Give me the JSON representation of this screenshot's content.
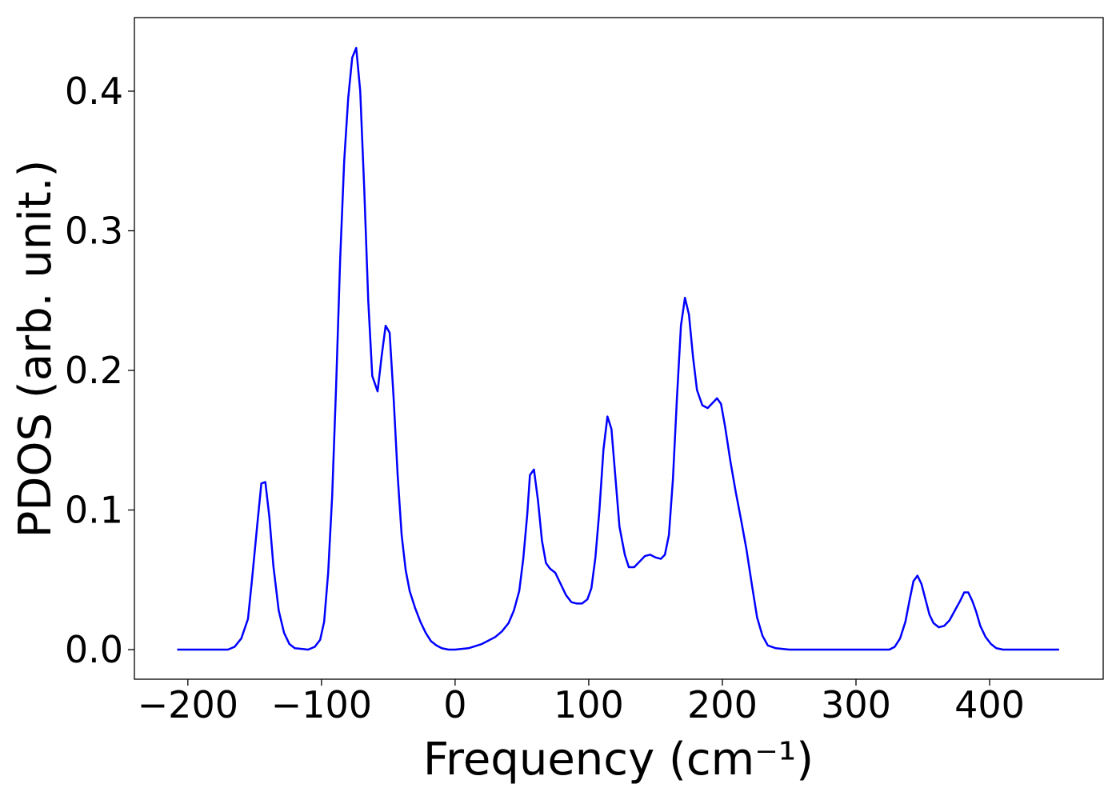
{
  "chart_data": {
    "type": "line",
    "xlabel": "Frequency (cm⁻¹)",
    "ylabel": "PDOS (arb. unit.)",
    "xlim": [
      -240,
      485
    ],
    "ylim": [
      -0.0212,
      0.4527
    ],
    "xticks": [
      {
        "value": -200,
        "label": "−200"
      },
      {
        "value": -100,
        "label": "−100"
      },
      0,
      100,
      200,
      300,
      400
    ],
    "yticks": [
      {
        "value": 0,
        "label": "0.0"
      },
      0.1,
      0.2,
      0.3,
      0.4
    ],
    "grid": false,
    "series": [
      {
        "color": "#0000ff",
        "x": [
          -208,
          -170,
          -165,
          -160,
          -155,
          -152,
          -148,
          -145,
          -142,
          -139,
          -136,
          -132,
          -128,
          -124,
          -120,
          -110,
          -105,
          -101,
          -98,
          -95,
          -92,
          -89,
          -86,
          -83,
          -80,
          -77,
          -74,
          -71,
          -68,
          -65,
          -62,
          -58,
          -55,
          -52,
          -49,
          -46,
          -43,
          -40,
          -37,
          -34,
          -30,
          -26,
          -22,
          -18,
          -14,
          -10,
          -5,
          0,
          10,
          20,
          30,
          35,
          40,
          44,
          48,
          51,
          54,
          56,
          59,
          62,
          65,
          68,
          71,
          75,
          79,
          83,
          87,
          91,
          95,
          99,
          102,
          105,
          108,
          111,
          114,
          117,
          120,
          123,
          127,
          130,
          134,
          138,
          142,
          146,
          150,
          154,
          157,
          160,
          163,
          166,
          169,
          172,
          175,
          178,
          181,
          185,
          189,
          193,
          196,
          199,
          202,
          206,
          210,
          214,
          218,
          222,
          226,
          230,
          234,
          240,
          250,
          325,
          329,
          333,
          337,
          340,
          343,
          346,
          349,
          352,
          355,
          358,
          362,
          366,
          370,
          374,
          378,
          381,
          384,
          387,
          390,
          393,
          397,
          401,
          405,
          410,
          452
        ],
        "values": [
          0,
          0,
          0.002,
          0.008,
          0.022,
          0.05,
          0.09,
          0.119,
          0.12,
          0.095,
          0.06,
          0.028,
          0.012,
          0.004,
          0.001,
          0,
          0.002,
          0.007,
          0.02,
          0.055,
          0.11,
          0.19,
          0.28,
          0.35,
          0.395,
          0.424,
          0.431,
          0.4,
          0.33,
          0.25,
          0.196,
          0.185,
          0.21,
          0.232,
          0.227,
          0.18,
          0.125,
          0.082,
          0.057,
          0.042,
          0.03,
          0.02,
          0.012,
          0.006,
          0.003,
          0.001,
          0,
          0,
          0.001,
          0.004,
          0.009,
          0.013,
          0.019,
          0.028,
          0.042,
          0.065,
          0.097,
          0.125,
          0.129,
          0.107,
          0.078,
          0.062,
          0.058,
          0.055,
          0.047,
          0.039,
          0.034,
          0.033,
          0.033,
          0.036,
          0.044,
          0.066,
          0.1,
          0.143,
          0.167,
          0.158,
          0.123,
          0.088,
          0.068,
          0.059,
          0.059,
          0.063,
          0.067,
          0.068,
          0.066,
          0.065,
          0.068,
          0.082,
          0.122,
          0.18,
          0.232,
          0.252,
          0.24,
          0.21,
          0.186,
          0.175,
          0.173,
          0.177,
          0.18,
          0.176,
          0.16,
          0.135,
          0.113,
          0.093,
          0.072,
          0.047,
          0.023,
          0.01,
          0.003,
          0.001,
          0,
          0,
          0.002,
          0.008,
          0.02,
          0.035,
          0.049,
          0.053,
          0.047,
          0.036,
          0.025,
          0.019,
          0.016,
          0.017,
          0.021,
          0.028,
          0.035,
          0.041,
          0.041,
          0.035,
          0.027,
          0.017,
          0.009,
          0.004,
          0.001,
          0,
          0
        ]
      }
    ]
  }
}
